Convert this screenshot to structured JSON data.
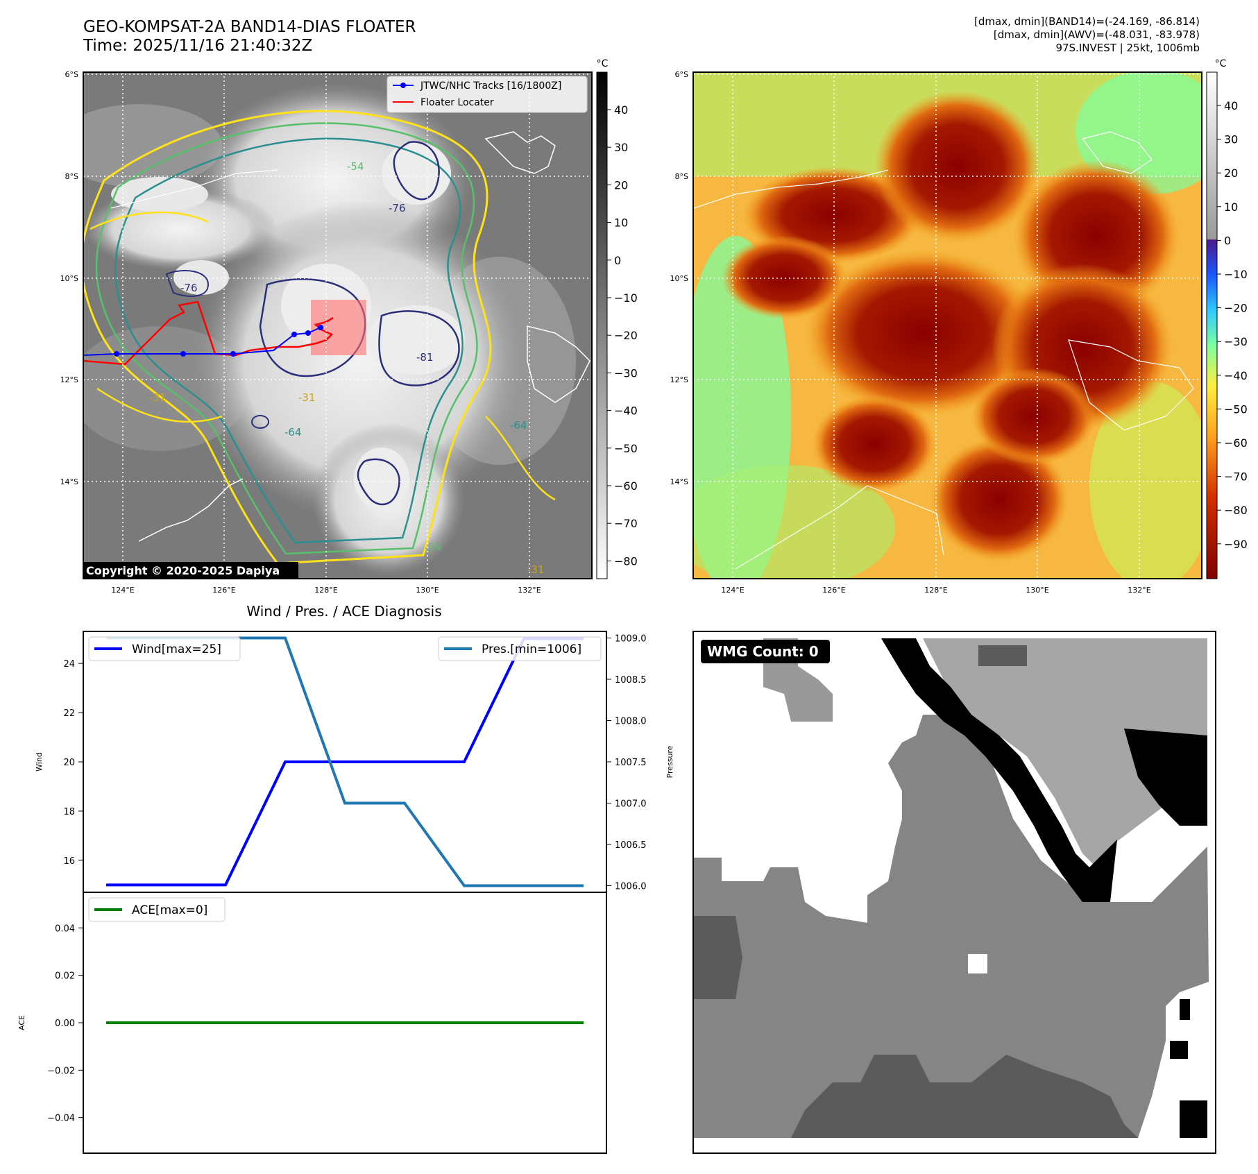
{
  "header": {
    "title_line1": "GEO-KOMPSAT-2A BAND14-DIAS FLOATER",
    "title_line2": "Time: 2025/11/16 21:40:32Z",
    "info_line1": "[dmax, dmin](BAND14)=(-24.169, -86.814)",
    "info_line2": "[dmax, dmin](AWV)=(-48.031, -83.978)",
    "info_line3": "97S.INVEST | 25kt, 1006mb"
  },
  "map_panels": {
    "lat_labels": [
      "6°S",
      "8°S",
      "10°S",
      "12°S",
      "14°S"
    ],
    "lon_labels": [
      "124°E",
      "126°E",
      "128°E",
      "130°E",
      "132°E"
    ],
    "legend_tracks": "JTWC/NHC Tracks [16/1800Z]",
    "legend_floater": "Floater Locater",
    "copyright": "Copyright © 2020-2025 Dapiya",
    "cbar_unit": "°C",
    "cbar_left_ticks": [
      "40",
      "30",
      "20",
      "10",
      "0",
      "−10",
      "−20",
      "−30",
      "−40",
      "−50",
      "−60",
      "−70",
      "−80"
    ],
    "cbar_right_ticks": [
      "40",
      "30",
      "20",
      "10",
      "0",
      "−10",
      "−20",
      "−30",
      "−40",
      "−50",
      "−60",
      "−70",
      "−80",
      "−90"
    ],
    "contour_labels": [
      "-31",
      "-54",
      "-64",
      "-76",
      "-81",
      "-31",
      "-31",
      "-54",
      "-64",
      "-76"
    ],
    "colors": {
      "track": "#0000ff",
      "floater": "#ff0000",
      "yellow": "#ffe11a",
      "green": "#3ea86a",
      "teal": "#2a8f8f",
      "navy": "#2b2f7a"
    }
  },
  "wmg": {
    "label": "WMG Count: 0"
  },
  "chart_data": [
    {
      "type": "line",
      "title": "Wind / Pres. / ACE Diagnosis",
      "ylabel": "Wind",
      "y2label": "Pressure",
      "ylim": [
        14.7,
        25.3
      ],
      "y2lim": [
        1005.92,
        1009.08
      ],
      "yticks": [
        16,
        18,
        20,
        22,
        24
      ],
      "y2ticks": [
        1006.0,
        1006.5,
        1007.0,
        1007.5,
        1008.0,
        1008.5,
        1009.0
      ],
      "x": [
        0,
        1,
        2,
        3,
        4,
        5,
        6,
        7,
        8
      ],
      "series": [
        {
          "name": "Wind[max=25]",
          "axis": "left",
          "color": "#0000ff",
          "values": [
            15,
            15,
            15,
            20,
            20,
            20,
            20,
            25,
            25
          ]
        },
        {
          "name": "Pres.[min=1006]",
          "axis": "right",
          "color": "#1f77b4",
          "values": [
            1009,
            1009,
            1009,
            1009,
            1007,
            1007,
            1006,
            1006,
            1006
          ]
        }
      ]
    },
    {
      "type": "line",
      "ylabel": "ACE",
      "ylim": [
        -0.055,
        0.055
      ],
      "yticks": [
        "0.04",
        "0.02",
        "0.00",
        "−0.02",
        "−0.04"
      ],
      "ytick_values": [
        0.04,
        0.02,
        0.0,
        -0.02,
        -0.04
      ],
      "x": [
        0,
        8
      ],
      "series": [
        {
          "name": "ACE[max=0]",
          "color": "#008000",
          "values": [
            0,
            0
          ]
        }
      ]
    }
  ]
}
